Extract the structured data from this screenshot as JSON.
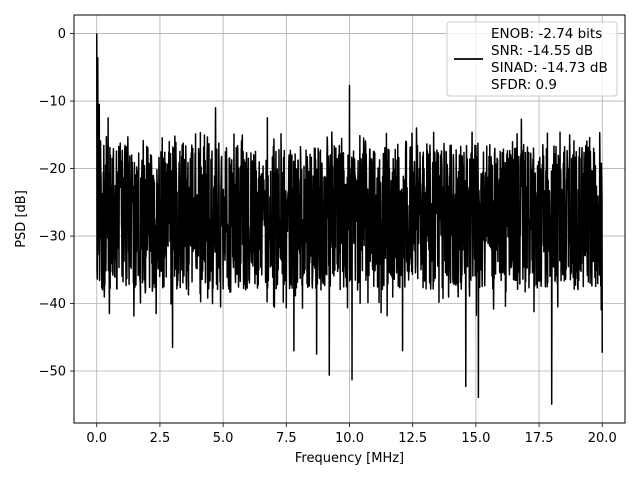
{
  "chart_data": {
    "type": "line",
    "title": "",
    "xlabel": "Frequency [MHz]",
    "ylabel": "PSD [dB]",
    "xlim": [
      -0.9,
      20.9
    ],
    "ylim": [
      -57.7,
      2.75
    ],
    "x_ticks": [
      0.0,
      2.5,
      5.0,
      7.5,
      10.0,
      12.5,
      15.0,
      17.5,
      20.0
    ],
    "x_tick_labels": [
      "0.0",
      "2.5",
      "5.0",
      "7.5",
      "10.0",
      "12.5",
      "15.0",
      "17.5",
      "20.0"
    ],
    "y_ticks": [
      0,
      -10,
      -20,
      -30,
      -40,
      -50
    ],
    "y_tick_labels": [
      "0",
      "−10",
      "−20",
      "−30",
      "−40",
      "−50"
    ],
    "grid": true,
    "legend_position": "top-right",
    "series": [
      {
        "color": "#000000",
        "x_range": [
          0.0,
          20.0
        ],
        "noise_floor": {
          "mean": -26.5,
          "upper": -16.5,
          "lower": -38.0
        },
        "highlights": [
          {
            "x": 0.0,
            "y": 0.0
          },
          {
            "x": 0.04,
            "y": -3.6
          },
          {
            "x": 0.1,
            "y": -10.5
          },
          {
            "x": 0.2,
            "y": -37.7
          },
          {
            "x": 0.45,
            "y": -12.5
          },
          {
            "x": 0.5,
            "y": -41.5
          },
          {
            "x": 2.35,
            "y": -41.5
          },
          {
            "x": 3.0,
            "y": -46.5
          },
          {
            "x": 4.7,
            "y": -11.0
          },
          {
            "x": 6.75,
            "y": -12.5
          },
          {
            "x": 7.8,
            "y": -47.0
          },
          {
            "x": 8.7,
            "y": -47.5
          },
          {
            "x": 9.2,
            "y": -50.6
          },
          {
            "x": 10.0,
            "y": -7.7
          },
          {
            "x": 10.1,
            "y": -51.3
          },
          {
            "x": 12.1,
            "y": -47.0
          },
          {
            "x": 12.65,
            "y": -14.0
          },
          {
            "x": 14.6,
            "y": -52.3
          },
          {
            "x": 15.1,
            "y": -53.9
          },
          {
            "x": 16.8,
            "y": -12.7
          },
          {
            "x": 18.0,
            "y": -54.9
          },
          {
            "x": 19.9,
            "y": -14.7
          },
          {
            "x": 20.0,
            "y": -47.3
          }
        ]
      }
    ],
    "legend": {
      "lines": [
        "ENOB: -2.74 bits",
        "SNR: -14.55 dB",
        "SINAD: -14.73 dB",
        "SFDR: 0.9"
      ]
    }
  }
}
